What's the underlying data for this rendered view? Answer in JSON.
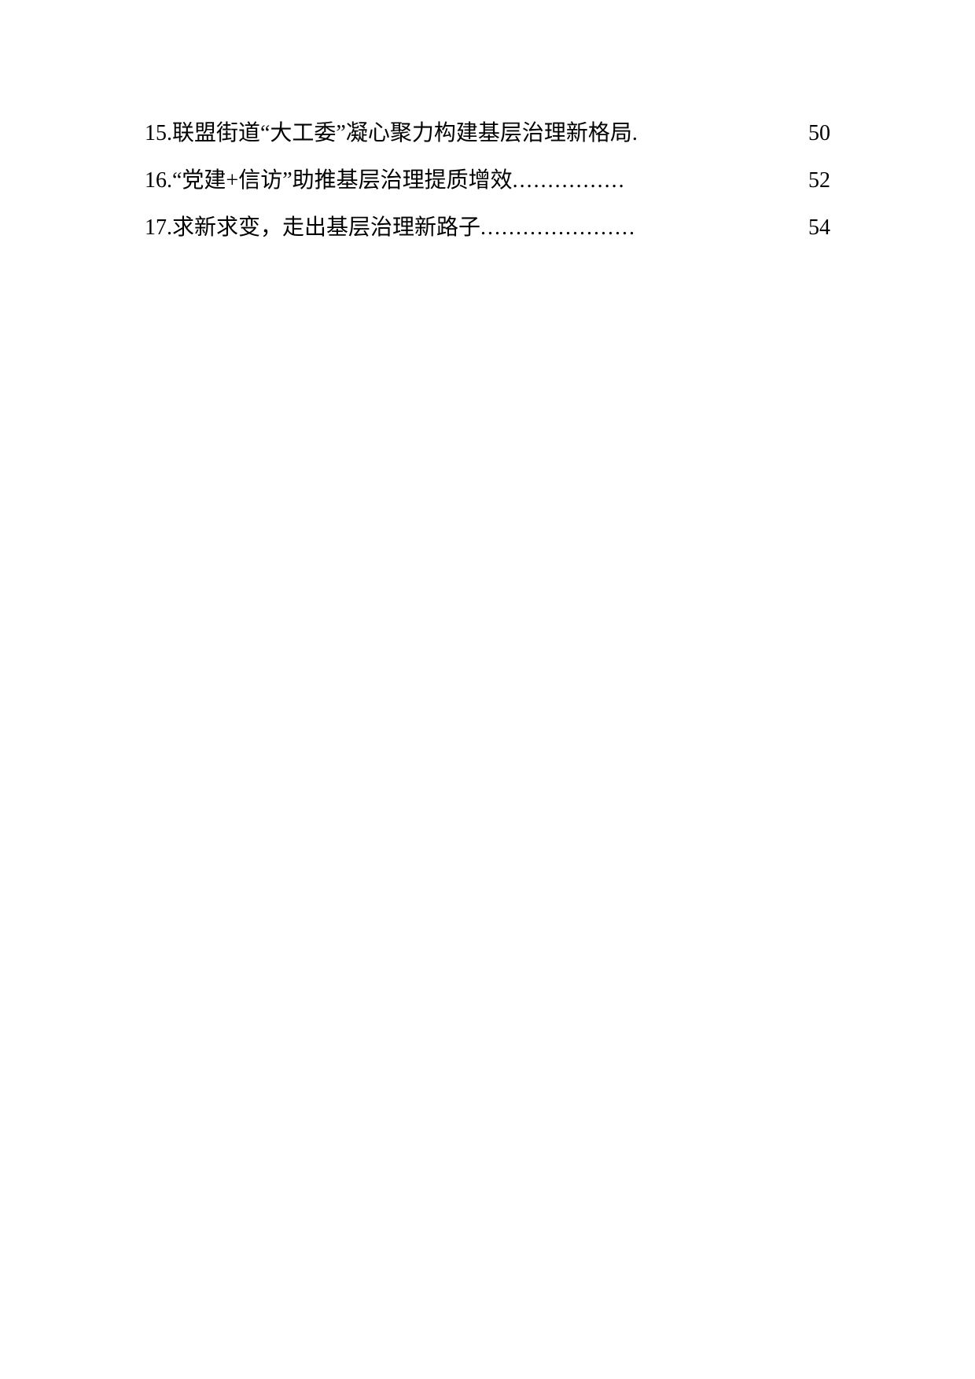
{
  "page": {
    "background_color": "#ffffff",
    "text_color": "#000000",
    "font_size": 28
  },
  "toc": {
    "entries": [
      {
        "number": "15.",
        "title": "联盟街道“大工委”凝心聚力构建基层治理新格局",
        "dots": ".",
        "page": "50"
      },
      {
        "number": "16.",
        "title": "“党建+信访”助推基层治理提质增效",
        "dots": "................",
        "page": "52"
      },
      {
        "number": "17.",
        "title": "求新求变，走出基层治理新路子",
        "dots": "......................",
        "page": "54"
      }
    ]
  }
}
